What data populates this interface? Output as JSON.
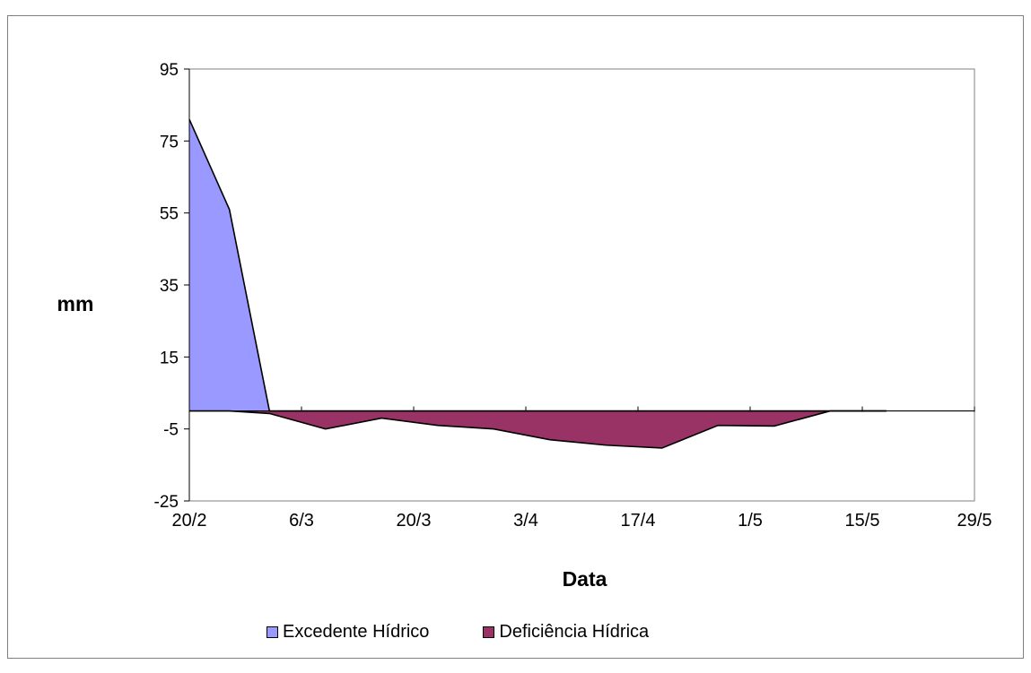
{
  "chart_data": {
    "type": "area",
    "xlabel": "Data",
    "ylabel": "mm",
    "ylim": [
      -25,
      95
    ],
    "y_ticks": [
      95,
      75,
      55,
      35,
      15,
      -5,
      -25
    ],
    "x_ticks": [
      "20/2",
      "6/3",
      "20/3",
      "3/4",
      "17/4",
      "1/5",
      "15/5",
      "29/5"
    ],
    "x_dates": [
      "20/2",
      "25/2",
      "2/3",
      "9/3",
      "16/3",
      "23/3",
      "30/3",
      "6/4",
      "13/4",
      "20/4",
      "27/4",
      "4/5",
      "11/5",
      "18/5"
    ],
    "series": [
      {
        "name": "Excedente Hídrico",
        "color": "#9999ff",
        "values": [
          81,
          56,
          0,
          0,
          0,
          0,
          0,
          0,
          0,
          0,
          0,
          0,
          0,
          0
        ]
      },
      {
        "name": "Deficiência Hídrica",
        "color": "#993366",
        "values": [
          0,
          0,
          -0.7,
          -5,
          -2,
          -4,
          -5,
          -8,
          -9.5,
          -10.3,
          -4,
          -4.2,
          0,
          0
        ]
      }
    ],
    "legend_position": "bottom",
    "grid": false
  }
}
